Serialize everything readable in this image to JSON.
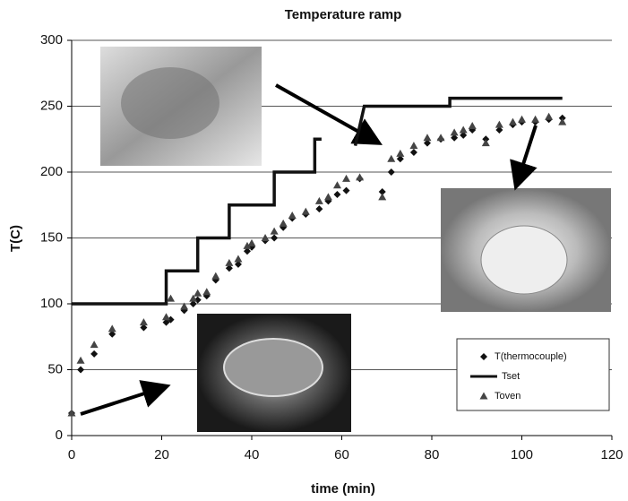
{
  "chart_data": {
    "type": "scatter",
    "title": "Temperature ramp",
    "x_label": "time (min)",
    "y_label": "T(C)",
    "xlim": [
      0,
      120
    ],
    "xticks": [
      0,
      20,
      40,
      60,
      80,
      100,
      120
    ],
    "ylim": [
      0,
      300
    ],
    "yticks": [
      0,
      50,
      100,
      150,
      200,
      250,
      300
    ],
    "grid": true,
    "legend_position": "lower right",
    "series": [
      {
        "name": "T(thermocouple)",
        "color": "#111111",
        "marker": "diamond",
        "x": [
          0,
          2,
          5,
          9,
          16,
          21,
          22,
          25,
          27,
          28,
          30,
          32,
          35,
          37,
          39,
          40,
          43,
          45,
          47,
          49,
          52,
          55,
          57,
          59,
          61,
          64,
          69,
          71,
          73,
          76,
          79,
          82,
          85,
          87,
          89,
          92,
          95,
          98,
          100,
          103,
          106,
          109
        ],
        "values": [
          17,
          50,
          62,
          77,
          82,
          86,
          88,
          95,
          100,
          103,
          106,
          118,
          127,
          130,
          140,
          143,
          148,
          150,
          158,
          165,
          168,
          172,
          178,
          183,
          186,
          195,
          185,
          200,
          210,
          215,
          222,
          225,
          226,
          228,
          232,
          225,
          232,
          236,
          238,
          238,
          240,
          241
        ]
      },
      {
        "name": "Tset",
        "color": "#111111",
        "marker": "line",
        "x": [
          0,
          21,
          21,
          28,
          28,
          35,
          35,
          45,
          45,
          54,
          54,
          55.5,
          null,
          63,
          65,
          84,
          84,
          109
        ],
        "values": [
          100,
          100,
          125,
          125,
          150,
          150,
          175,
          175,
          200,
          200,
          225,
          225,
          null,
          220,
          250,
          250,
          256,
          256
        ]
      },
      {
        "name": "Toven",
        "color": "#444444",
        "marker": "triangle",
        "x": [
          0,
          2,
          5,
          9,
          16,
          21,
          22,
          25,
          27,
          28,
          30,
          32,
          35,
          37,
          39,
          40,
          43,
          45,
          47,
          49,
          52,
          55,
          57,
          59,
          61,
          64,
          69,
          71,
          73,
          76,
          79,
          82,
          85,
          87,
          89,
          92,
          95,
          98,
          100,
          103,
          106,
          109
        ],
        "values": [
          17,
          57,
          69,
          81,
          86,
          90,
          104,
          98,
          104,
          108,
          109,
          121,
          131,
          134,
          144,
          146,
          150,
          155,
          161,
          167,
          170,
          178,
          181,
          190,
          195,
          196,
          181,
          210,
          214,
          220,
          226,
          226,
          230,
          232,
          235,
          222,
          236,
          238,
          240,
          240,
          242,
          238
        ]
      }
    ]
  }
}
